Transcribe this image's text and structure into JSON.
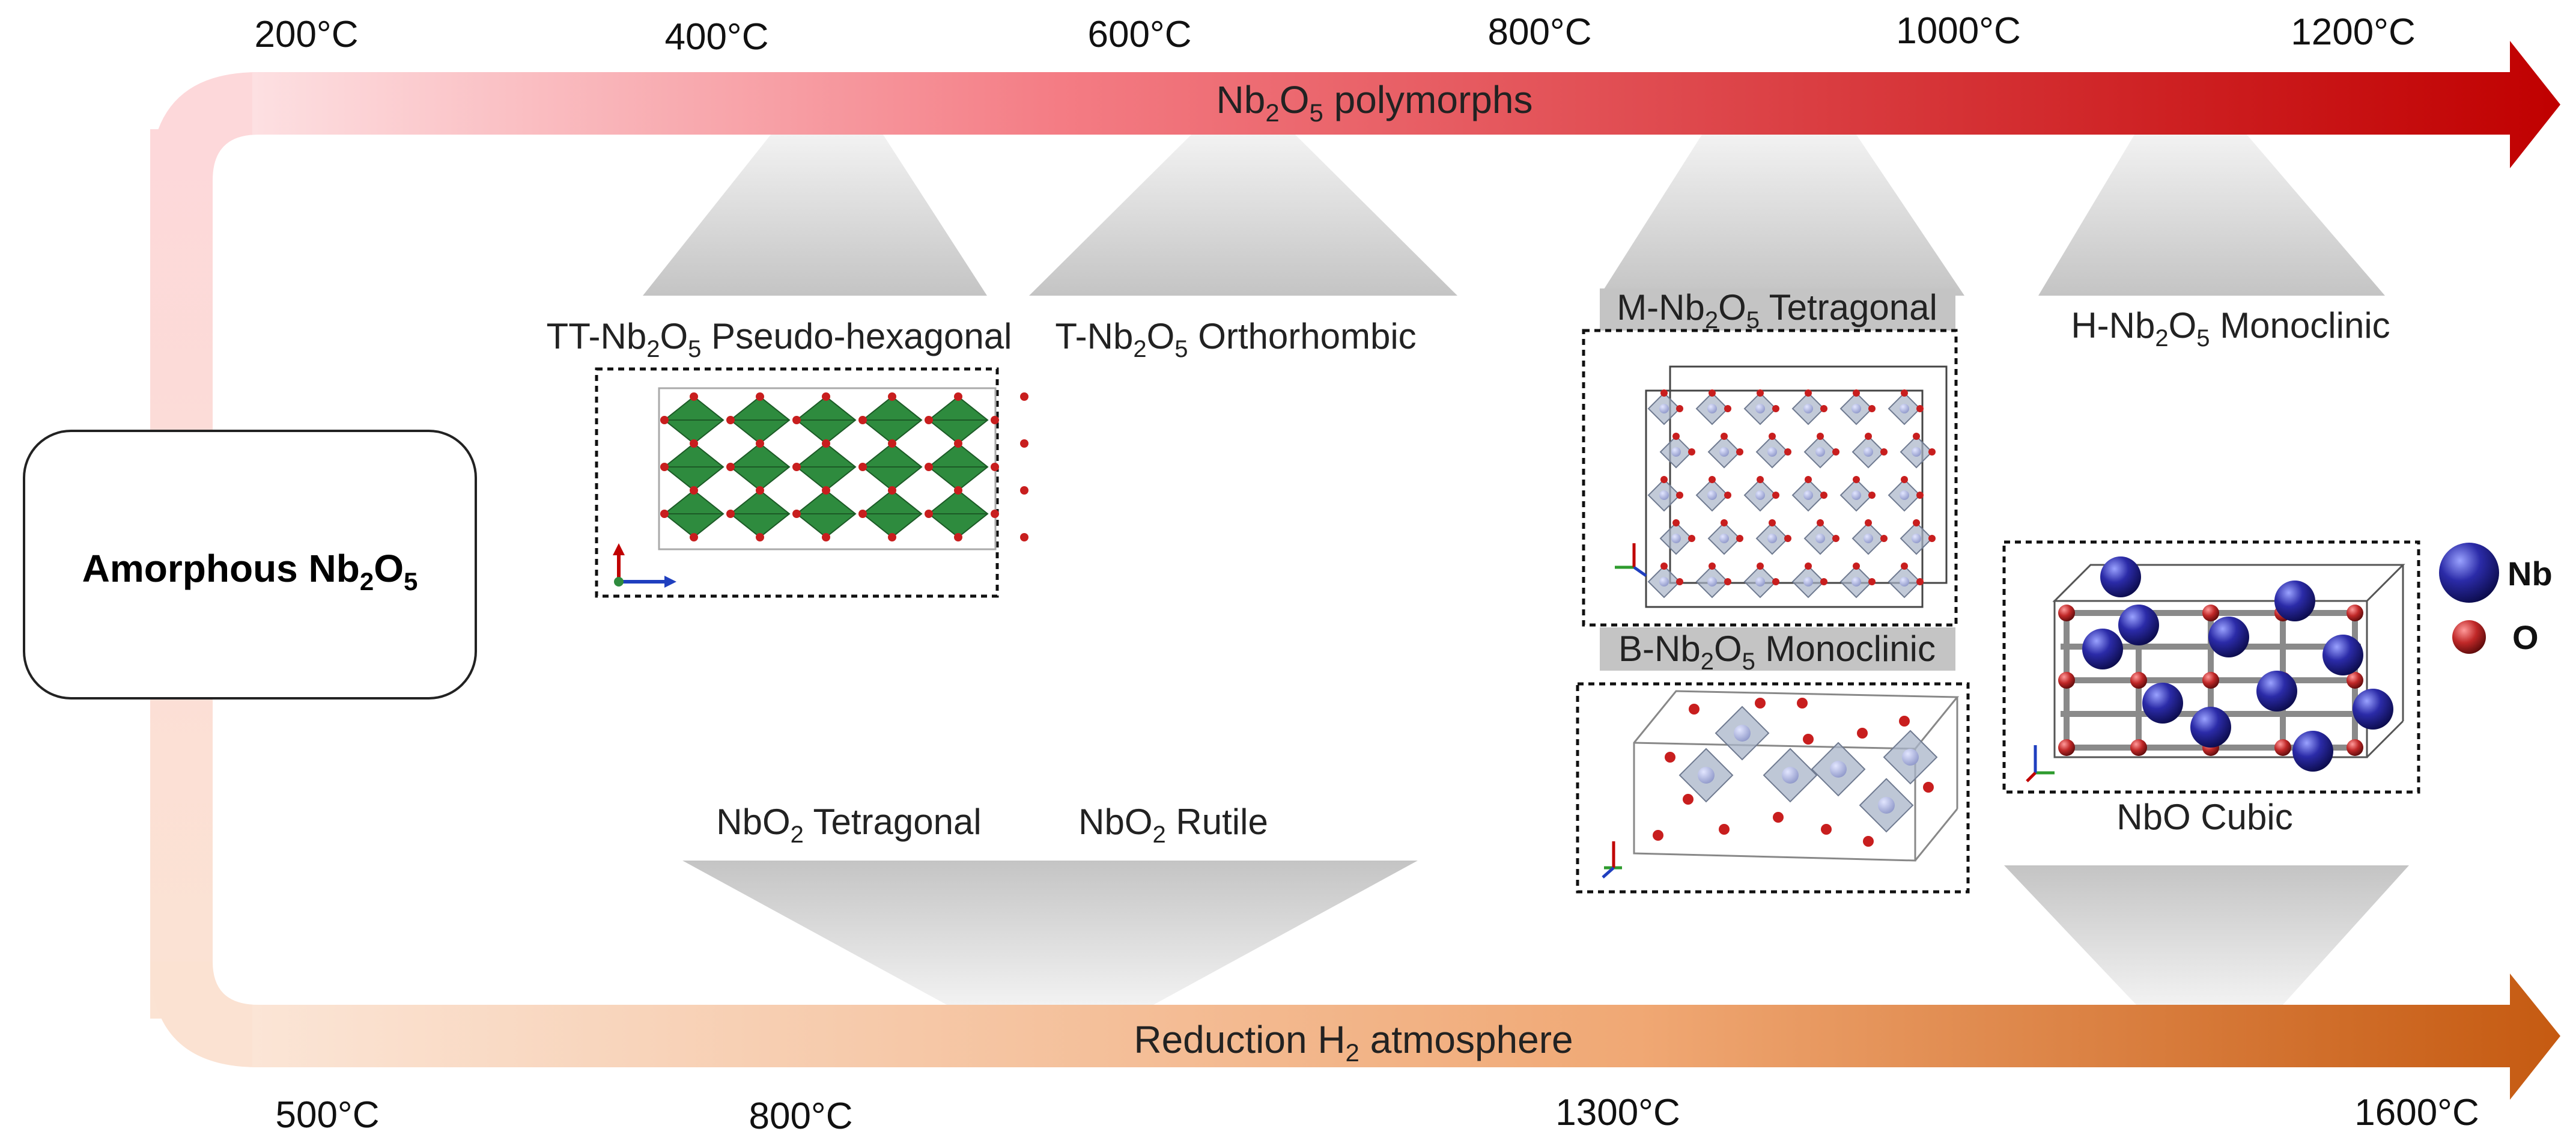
{
  "top_axis": {
    "ticks": [
      "200°C",
      "400°C",
      "600°C",
      "800°C",
      "1000°C",
      "1200°C"
    ],
    "banner": {
      "pre": "Nb",
      "sub1": "2",
      "mid": "O",
      "sub2": "5",
      "post": " polymorphs"
    },
    "gradient_start": "#fde0e2",
    "gradient_end": "#c00000"
  },
  "bottom_axis": {
    "ticks": [
      "500°C",
      "800°C",
      "1300°C",
      "1600°C"
    ],
    "banner": {
      "pre": "Reduction H",
      "sub": "2",
      "post": " atmosphere"
    },
    "gradient_start": "#fbe5d6",
    "gradient_end": "#c55a11"
  },
  "start_box": {
    "pre": "Amorphous Nb",
    "sub1": "2",
    "mid": "O",
    "sub2": "5"
  },
  "phases": {
    "tt": {
      "pre": "TT-Nb",
      "sub1": "2",
      "mid": "O",
      "sub2": "5",
      "post": "  Pseudo-hexagonal"
    },
    "t": {
      "pre": "T-Nb",
      "sub1": "2",
      "mid": "O",
      "sub2": "5",
      "post": " Orthorhombic"
    },
    "m": {
      "pre": "M-Nb",
      "sub1": "2",
      "mid": "O",
      "sub2": "5",
      "post": " Tetragonal"
    },
    "h": {
      "pre": "H-Nb",
      "sub1": "2",
      "mid": "O",
      "sub2": "5",
      "post": " Monoclinic"
    },
    "b": {
      "pre": "B-Nb",
      "sub1": "2",
      "mid": "O",
      "sub2": "5",
      "post": " Monoclinic"
    },
    "nbo2_tet": {
      "pre": "NbO",
      "sub": "2",
      "post": " Tetragonal"
    },
    "nbo2_rut": {
      "pre": "NbO",
      "sub": "2",
      "post": " Rutile"
    },
    "nbo_cubic": "NbO Cubic"
  },
  "legend": {
    "nb": "Nb",
    "o": "O",
    "nb_color": "#1f1f8c",
    "o_color": "#b52020"
  },
  "colors": {
    "octahedra_green": "#2e8b3e",
    "octahedra_gray": "#a8b4c8",
    "cell_frame": "#666666"
  }
}
